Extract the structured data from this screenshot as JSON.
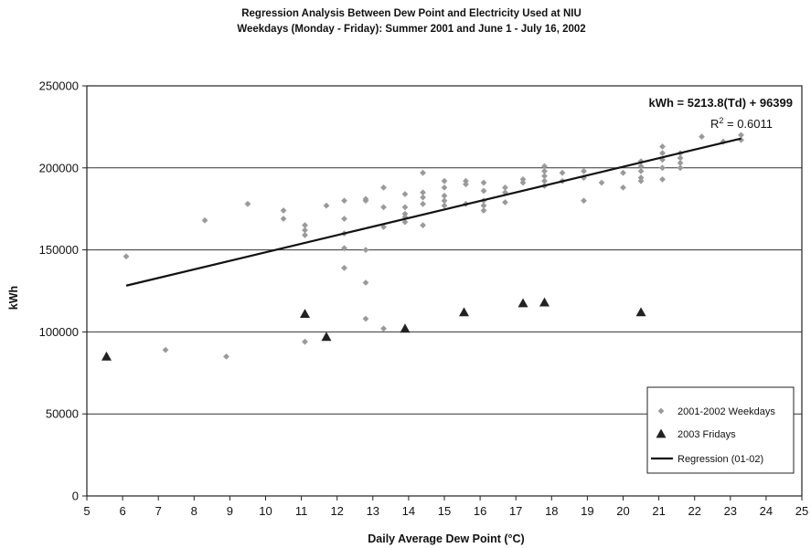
{
  "chart_data": {
    "type": "scatter",
    "title_line1": "Regression Analysis Between Dew Point and Electricity Used at NIU",
    "title_line2": "Weekdays (Monday - Friday):  Summer 2001 and June 1 - July 16, 2002",
    "xlabel": "Daily Average Dew Point (°C)",
    "ylabel": "kWh",
    "xlim": [
      5,
      25
    ],
    "ylim": [
      0,
      250000
    ],
    "x_ticks": [
      "5",
      "6",
      "7",
      "8",
      "9",
      "10",
      "11",
      "12",
      "13",
      "14",
      "15",
      "16",
      "17",
      "18",
      "19",
      "20",
      "21",
      "22",
      "23",
      "24",
      "25"
    ],
    "y_ticks": [
      "0",
      "50000",
      "100000",
      "150000",
      "200000",
      "250000"
    ],
    "grid": "horizontal",
    "legend_position": "bottom-right",
    "annotation": {
      "equation": "kWh = 5213.8(Td) + 96399",
      "r2_prefix": "R",
      "r2_sup": "2",
      "r2_suffix": " = 0.6011"
    },
    "series": [
      {
        "name": "2001-2002 Weekdays",
        "marker": "diamond",
        "color": "#9a9a9a",
        "points": [
          [
            6.1,
            146000
          ],
          [
            7.2,
            89000
          ],
          [
            8.3,
            168000
          ],
          [
            8.9,
            85000
          ],
          [
            9.5,
            178000
          ],
          [
            10.5,
            174000
          ],
          [
            10.5,
            169000
          ],
          [
            11.1,
            165000
          ],
          [
            11.1,
            162000
          ],
          [
            11.1,
            159000
          ],
          [
            11.1,
            94000
          ],
          [
            11.7,
            177000
          ],
          [
            12.2,
            180000
          ],
          [
            12.2,
            169000
          ],
          [
            12.2,
            160000
          ],
          [
            12.2,
            151000
          ],
          [
            12.2,
            139000
          ],
          [
            12.8,
            181000
          ],
          [
            12.8,
            180000
          ],
          [
            12.8,
            150000
          ],
          [
            12.8,
            130000
          ],
          [
            12.8,
            108000
          ],
          [
            13.3,
            188000
          ],
          [
            13.3,
            176000
          ],
          [
            13.3,
            164000
          ],
          [
            13.3,
            102000
          ],
          [
            13.9,
            184000
          ],
          [
            13.9,
            176000
          ],
          [
            13.9,
            172000
          ],
          [
            13.9,
            170000
          ],
          [
            13.9,
            167000
          ],
          [
            14.4,
            197000
          ],
          [
            14.4,
            185000
          ],
          [
            14.4,
            182000
          ],
          [
            14.4,
            178000
          ],
          [
            14.4,
            165000
          ],
          [
            15.0,
            192000
          ],
          [
            15.0,
            188000
          ],
          [
            15.0,
            183000
          ],
          [
            15.0,
            180000
          ],
          [
            15.0,
            177000
          ],
          [
            15.6,
            192000
          ],
          [
            15.6,
            190000
          ],
          [
            15.6,
            178000
          ],
          [
            16.1,
            191000
          ],
          [
            16.1,
            186000
          ],
          [
            16.1,
            180000
          ],
          [
            16.1,
            177000
          ],
          [
            16.1,
            174000
          ],
          [
            16.7,
            188000
          ],
          [
            16.7,
            185000
          ],
          [
            16.7,
            179000
          ],
          [
            17.2,
            193000
          ],
          [
            17.2,
            191000
          ],
          [
            17.8,
            201000
          ],
          [
            17.8,
            198000
          ],
          [
            17.8,
            195000
          ],
          [
            17.8,
            192000
          ],
          [
            17.8,
            189000
          ],
          [
            18.3,
            197000
          ],
          [
            18.3,
            192000
          ],
          [
            18.9,
            198000
          ],
          [
            18.9,
            194000
          ],
          [
            18.9,
            180000
          ],
          [
            19.4,
            191000
          ],
          [
            20.0,
            197000
          ],
          [
            20.0,
            188000
          ],
          [
            20.5,
            204000
          ],
          [
            20.5,
            201000
          ],
          [
            20.5,
            198000
          ],
          [
            20.5,
            194000
          ],
          [
            20.5,
            192000
          ],
          [
            21.1,
            213000
          ],
          [
            21.1,
            209000
          ],
          [
            21.1,
            205000
          ],
          [
            21.1,
            200000
          ],
          [
            21.1,
            193000
          ],
          [
            21.6,
            209000
          ],
          [
            21.6,
            206000
          ],
          [
            21.6,
            203000
          ],
          [
            21.6,
            200000
          ],
          [
            22.2,
            219000
          ],
          [
            22.8,
            216000
          ],
          [
            23.3,
            220000
          ],
          [
            23.3,
            217000
          ]
        ]
      },
      {
        "name": "2003 Fridays",
        "marker": "triangle",
        "color": "#222222",
        "points": [
          [
            5.55,
            85000
          ],
          [
            11.1,
            111000
          ],
          [
            11.7,
            97000
          ],
          [
            13.9,
            102000
          ],
          [
            15.55,
            112000
          ],
          [
            17.2,
            117500
          ],
          [
            17.8,
            118000
          ],
          [
            20.5,
            112000
          ]
        ]
      },
      {
        "name": "Regression (01-02)",
        "marker": "line",
        "color": "#111111",
        "points": [
          [
            6.1,
            128200
          ],
          [
            23.3,
            217900
          ]
        ]
      }
    ]
  }
}
